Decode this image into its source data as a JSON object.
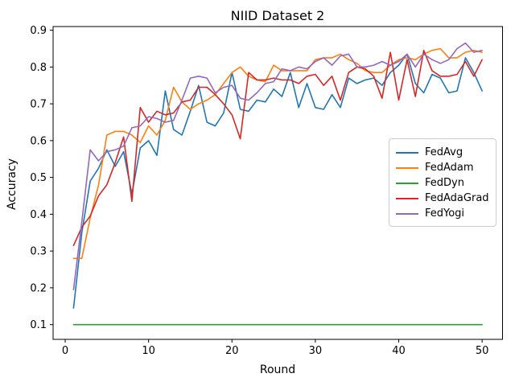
{
  "figure": {
    "title": "NIID Dataset 2",
    "background_color": "#ffffff",
    "axis_color": "#000000"
  },
  "chart_data": {
    "type": "line",
    "title": "NIID Dataset 2",
    "xlabel": "Round",
    "ylabel": "Accuracy",
    "xlim": [
      -1.45,
      52.45
    ],
    "ylim": [
      0.06,
      0.91
    ],
    "x_ticks": [
      0,
      10,
      20,
      30,
      40,
      50
    ],
    "y_ticks": [
      0.1,
      0.2,
      0.3,
      0.4,
      0.5,
      0.6,
      0.7,
      0.8,
      0.9
    ],
    "grid": false,
    "legend_position": "center-right",
    "x": [
      1,
      2,
      3,
      4,
      5,
      6,
      7,
      8,
      9,
      10,
      11,
      12,
      13,
      14,
      15,
      16,
      17,
      18,
      19,
      20,
      21,
      22,
      23,
      24,
      25,
      26,
      27,
      28,
      29,
      30,
      31,
      32,
      33,
      34,
      35,
      36,
      37,
      38,
      39,
      40,
      41,
      42,
      43,
      44,
      45,
      46,
      47,
      48,
      49,
      50
    ],
    "series": [
      {
        "name": "FedAvg",
        "color": "#1f77b4",
        "values": [
          0.145,
          0.35,
          0.49,
          0.525,
          0.575,
          0.53,
          0.57,
          0.455,
          0.58,
          0.6,
          0.56,
          0.735,
          0.63,
          0.615,
          0.68,
          0.75,
          0.65,
          0.64,
          0.675,
          0.785,
          0.685,
          0.68,
          0.71,
          0.705,
          0.74,
          0.72,
          0.785,
          0.69,
          0.755,
          0.69,
          0.685,
          0.725,
          0.69,
          0.77,
          0.755,
          0.765,
          0.77,
          0.75,
          0.785,
          0.805,
          0.835,
          0.755,
          0.73,
          0.78,
          0.77,
          0.73,
          0.735,
          0.825,
          0.785,
          0.735
        ]
      },
      {
        "name": "FedAdam",
        "color": "#ff7f0e",
        "values": [
          0.28,
          0.28,
          0.39,
          0.48,
          0.615,
          0.625,
          0.625,
          0.615,
          0.595,
          0.64,
          0.615,
          0.655,
          0.745,
          0.705,
          0.685,
          0.7,
          0.71,
          0.725,
          0.755,
          0.785,
          0.8,
          0.775,
          0.765,
          0.76,
          0.805,
          0.79,
          0.79,
          0.79,
          0.79,
          0.82,
          0.825,
          0.825,
          0.835,
          0.82,
          0.81,
          0.79,
          0.785,
          0.785,
          0.805,
          0.82,
          0.825,
          0.82,
          0.835,
          0.845,
          0.85,
          0.825,
          0.825,
          0.84,
          0.845,
          0.84
        ]
      },
      {
        "name": "FedDyn",
        "color": "#2ca02c",
        "values": [
          0.1,
          0.1,
          0.1,
          0.1,
          0.1,
          0.1,
          0.1,
          0.1,
          0.1,
          0.1,
          0.1,
          0.1,
          0.1,
          0.1,
          0.1,
          0.1,
          0.1,
          0.1,
          0.1,
          0.1,
          0.1,
          0.1,
          0.1,
          0.1,
          0.1,
          0.1,
          0.1,
          0.1,
          0.1,
          0.1,
          0.1,
          0.1,
          0.1,
          0.1,
          0.1,
          0.1,
          0.1,
          0.1,
          0.1,
          0.1,
          0.1,
          0.1,
          0.1,
          0.1,
          0.1,
          0.1,
          0.1,
          0.1,
          0.1,
          0.1
        ]
      },
      {
        "name": "FedAdaGrad",
        "color": "#d62728",
        "values": [
          0.315,
          0.365,
          0.395,
          0.45,
          0.48,
          0.54,
          0.61,
          0.435,
          0.69,
          0.65,
          0.68,
          0.67,
          0.675,
          0.705,
          0.71,
          0.745,
          0.745,
          0.725,
          0.7,
          0.67,
          0.605,
          0.785,
          0.765,
          0.765,
          0.77,
          0.765,
          0.765,
          0.755,
          0.775,
          0.78,
          0.75,
          0.775,
          0.71,
          0.785,
          0.8,
          0.795,
          0.775,
          0.715,
          0.84,
          0.71,
          0.82,
          0.72,
          0.845,
          0.79,
          0.775,
          0.775,
          0.78,
          0.815,
          0.775,
          0.82
        ]
      },
      {
        "name": "FedYogi",
        "color": "#9467bd",
        "values": [
          0.195,
          0.38,
          0.575,
          0.545,
          0.57,
          0.575,
          0.585,
          0.635,
          0.64,
          0.665,
          0.66,
          0.65,
          0.655,
          0.71,
          0.77,
          0.775,
          0.77,
          0.73,
          0.745,
          0.75,
          0.715,
          0.71,
          0.73,
          0.755,
          0.76,
          0.795,
          0.79,
          0.8,
          0.795,
          0.815,
          0.825,
          0.805,
          0.83,
          0.835,
          0.8,
          0.8,
          0.805,
          0.815,
          0.805,
          0.815,
          0.835,
          0.8,
          0.835,
          0.82,
          0.81,
          0.82,
          0.85,
          0.865,
          0.84,
          0.845
        ]
      }
    ]
  }
}
